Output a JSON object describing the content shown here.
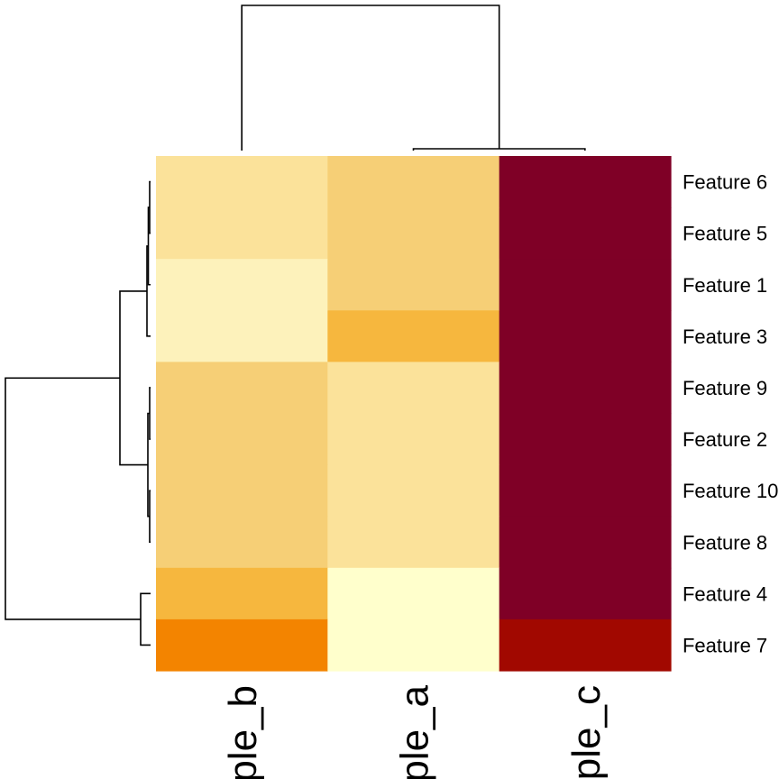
{
  "chart_data": {
    "type": "heatmap",
    "title": "",
    "xlabel": "",
    "ylabel": "",
    "columns": [
      "sample_b",
      "sample_a",
      "sample_c"
    ],
    "column_labels_visible": [
      "ple_b",
      "ple_a",
      "ple_c"
    ],
    "rows": [
      "Feature 6",
      "Feature 5",
      "Feature 1",
      "Feature 3",
      "Feature 9",
      "Feature 2",
      "Feature 10",
      "Feature 8",
      "Feature 4",
      "Feature 7"
    ],
    "values": [
      [
        3,
        4,
        10
      ],
      [
        3,
        4,
        10
      ],
      [
        2,
        4,
        10
      ],
      [
        2,
        5,
        10
      ],
      [
        4,
        3,
        10
      ],
      [
        4,
        3,
        10
      ],
      [
        4,
        3,
        10
      ],
      [
        4,
        3,
        10
      ],
      [
        6,
        1,
        10
      ],
      [
        7,
        1,
        9
      ]
    ],
    "value_range": [
      1,
      10
    ],
    "colormap": "heat (yellow-orange-red)",
    "color_scale": [
      "#ffffcc",
      "#fdf2bb",
      "#fbe29a",
      "#f6cf76",
      "#f6b73e",
      "#f38400",
      "#ec6200",
      "#a10800",
      "#7f0026"
    ],
    "row_dendrogram": "left",
    "column_dendrogram": "top",
    "legend": "none"
  }
}
